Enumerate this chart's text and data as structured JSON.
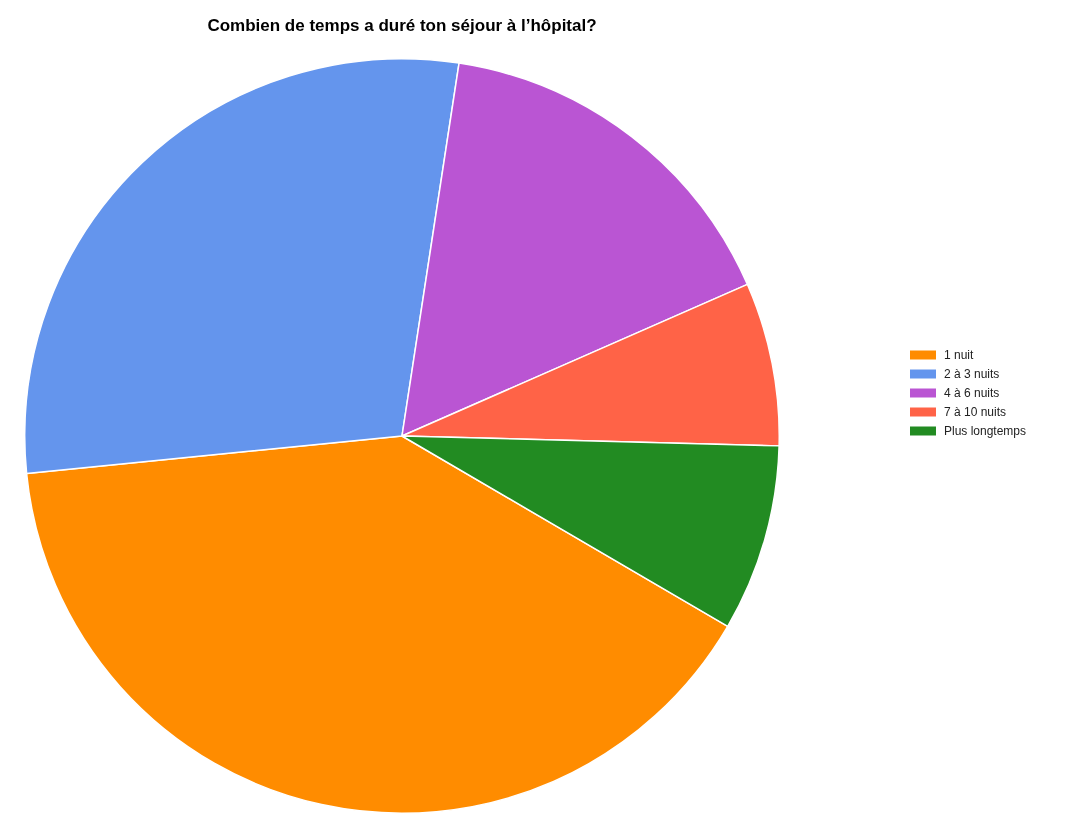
{
  "chart_data": {
    "type": "pie",
    "title": "Combien de temps a duré ton séjour à l’hôpital?",
    "categories": [
      "1 nuit",
      "2 à 3 nuits",
      "4 à 6 nuits",
      "7 à 10 nuits",
      "Plus longtemps"
    ],
    "values": [
      40,
      29,
      16,
      7,
      8
    ],
    "colors": [
      "#ff8c00",
      "#6495ed",
      "#ba55d3",
      "#ff6347",
      "#228b22"
    ],
    "legend": "right"
  }
}
